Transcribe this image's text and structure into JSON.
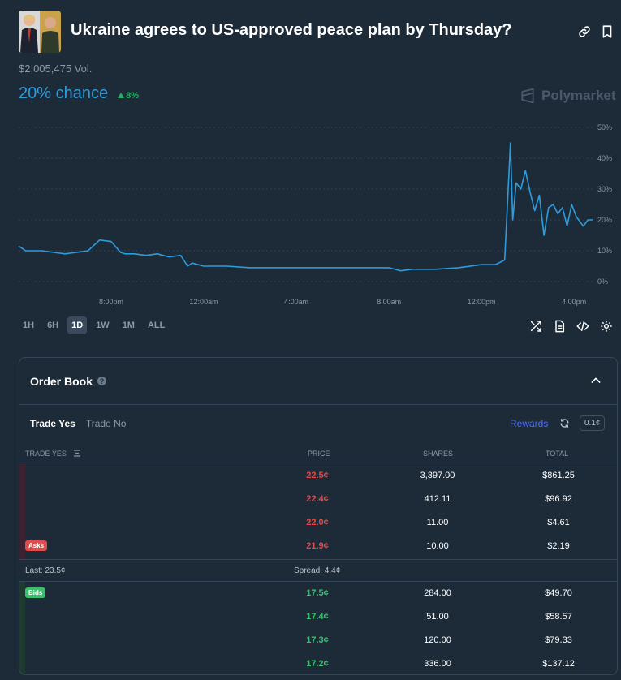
{
  "market": {
    "title": "Ukraine agrees to US-approved peace plan by Thursday?",
    "volume": "$2,005,475 Vol.",
    "chance": "20% chance",
    "change": "8%",
    "brand": "Polymarket"
  },
  "colors": {
    "accent": "#2d9cdb",
    "up": "#27ae60",
    "ask": "#e04b4b",
    "bid": "#3bbf6c",
    "background": "#1d2b39"
  },
  "chart_data": {
    "type": "line",
    "title": "",
    "xlabel": "",
    "ylabel": "",
    "ylim": [
      0,
      50
    ],
    "y_ticks": [
      "50%",
      "40%",
      "30%",
      "20%",
      "10%",
      "0%"
    ],
    "x_tick_labels": [
      "8:00pm",
      "12:00am",
      "4:00am",
      "8:00am",
      "12:00pm",
      "4:00pm"
    ],
    "x_ticks_hours": [
      4,
      8,
      12,
      16,
      20,
      24
    ],
    "grid": "horizontal dashed",
    "series": [
      {
        "color": "#2d9cdb",
        "x_hours": [
          0,
          0.3,
          1.0,
          2.0,
          2.5,
          3.0,
          3.5,
          4.0,
          4.4,
          4.6,
          5.0,
          5.5,
          6.0,
          6.5,
          7.0,
          7.3,
          7.5,
          8.0,
          9.0,
          10.0,
          12.0,
          14.0,
          16.0,
          16.5,
          17.0,
          18.0,
          19.0,
          20.0,
          20.6,
          21.0,
          21.25,
          21.35,
          21.5,
          21.7,
          21.9,
          22.1,
          22.3,
          22.5,
          22.7,
          22.9,
          23.1,
          23.3,
          23.5,
          23.7,
          23.9,
          24.1,
          24.4,
          24.6,
          24.8
        ],
        "y_percent": [
          11.5,
          10,
          10,
          9,
          9.5,
          10,
          13.5,
          13,
          9.5,
          9,
          9,
          8.5,
          9,
          8,
          8.5,
          5,
          6,
          5,
          5,
          4.5,
          4.5,
          4.5,
          4.5,
          3.5,
          4,
          4,
          4.5,
          5.5,
          5.5,
          7,
          45,
          20,
          32,
          30,
          36,
          29,
          23,
          28,
          15,
          24,
          25,
          22,
          24,
          18,
          25,
          21,
          18,
          20,
          20
        ]
      }
    ]
  },
  "ranges": [
    "1H",
    "6H",
    "1D",
    "1W",
    "1M",
    "ALL"
  ],
  "active_range": "1D",
  "icons": {
    "link": "link-icon",
    "bookmark": "bookmark-icon",
    "shuffle": "shuffle-icon",
    "document": "document-icon",
    "code": "code-icon",
    "settings": "gear-icon"
  },
  "orderbook": {
    "title": "Order Book",
    "tab_yes": "Trade Yes",
    "tab_no": "Trade No",
    "rewards": "Rewards",
    "tick_size": "0.1¢",
    "col_trade": "TRADE YES",
    "col_price": "PRICE",
    "col_shares": "SHARES",
    "col_total": "TOTAL",
    "asks_label": "Asks",
    "bids_label": "Bids",
    "last": "Last: 23.5¢",
    "spread": "Spread: 4.4¢",
    "asks": [
      {
        "price": "22.5¢",
        "shares": "3,397.00",
        "total": "$861.25"
      },
      {
        "price": "22.4¢",
        "shares": "412.11",
        "total": "$96.92"
      },
      {
        "price": "22.0¢",
        "shares": "11.00",
        "total": "$4.61"
      },
      {
        "price": "21.9¢",
        "shares": "10.00",
        "total": "$2.19"
      }
    ],
    "bids": [
      {
        "price": "17.5¢",
        "shares": "284.00",
        "total": "$49.70"
      },
      {
        "price": "17.4¢",
        "shares": "51.00",
        "total": "$58.57"
      },
      {
        "price": "17.3¢",
        "shares": "120.00",
        "total": "$79.33"
      },
      {
        "price": "17.2¢",
        "shares": "336.00",
        "total": "$137.12"
      }
    ]
  }
}
